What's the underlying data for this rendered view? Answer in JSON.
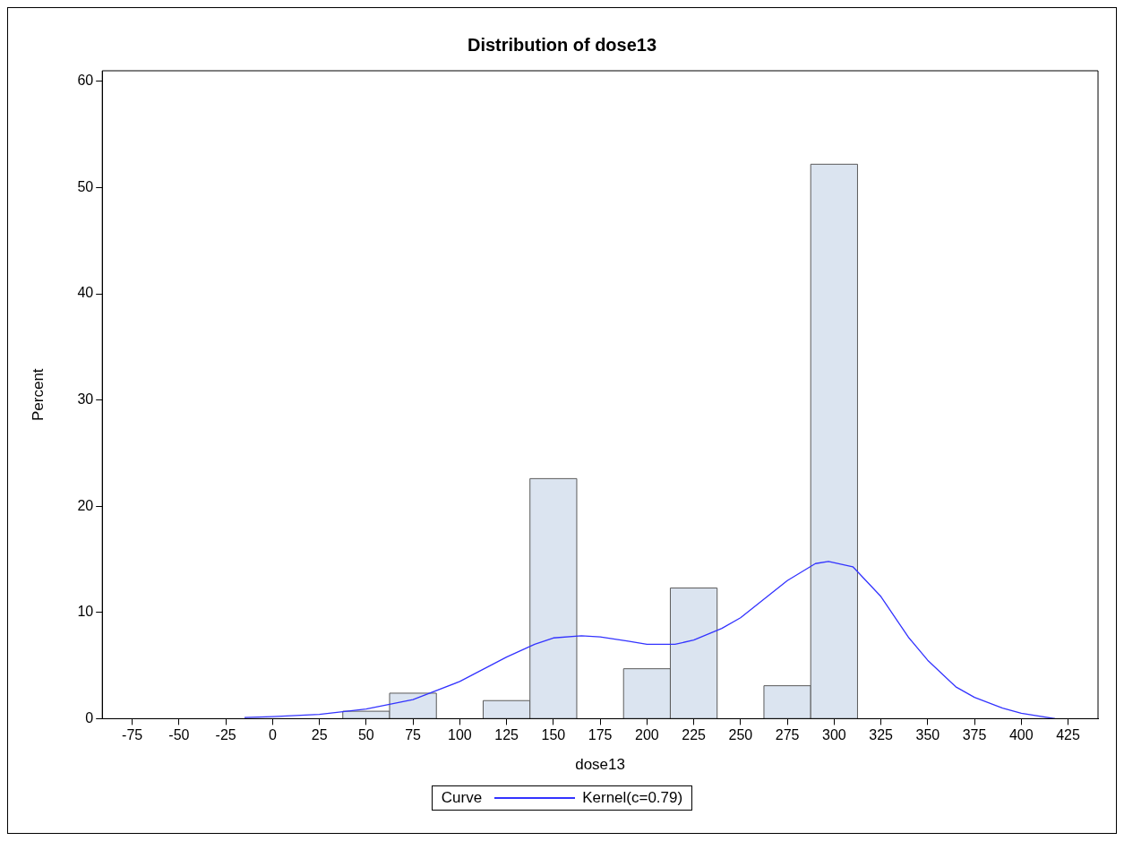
{
  "chart_data": {
    "type": "histogram",
    "title": "Distribution of dose13",
    "xlabel": "dose13",
    "ylabel": "Percent",
    "bins": [
      37.5,
      62.5,
      87.5,
      112.5,
      137.5,
      162.5,
      187.5,
      212.5,
      237.5,
      262.5,
      287.5,
      312.5
    ],
    "values": [
      0.7,
      2.4,
      0,
      1.7,
      22.6,
      0,
      4.7,
      12.3,
      0,
      3.1,
      52.2
    ],
    "color": "#dbe4f0",
    "series": [
      {
        "name": "Kernel(c=0.79)",
        "type": "line",
        "color": "#3333ff",
        "x": [
          -15,
          0,
          25,
          50,
          75,
          100,
          125,
          140,
          150,
          165,
          175,
          190,
          200,
          215,
          225,
          240,
          250,
          275,
          290,
          297,
          310,
          325,
          340,
          350,
          365,
          375,
          390,
          400,
          418
        ],
        "values": [
          0.1,
          0.2,
          0.4,
          0.9,
          1.8,
          3.5,
          5.8,
          7.0,
          7.6,
          7.8,
          7.7,
          7.3,
          7.0,
          7.0,
          7.4,
          8.5,
          9.5,
          13.0,
          14.6,
          14.8,
          14.3,
          11.5,
          7.6,
          5.5,
          3.0,
          2.0,
          1.0,
          0.5,
          0.0
        ]
      }
    ],
    "legend_title": "Curve",
    "legend": "bottom",
    "grid": false,
    "marker": "none",
    "line_style": "solid",
    "xlim": [
      -91,
      441
    ],
    "xticks": [
      -75,
      -50,
      -25,
      0,
      25,
      50,
      75,
      100,
      125,
      150,
      175,
      200,
      225,
      250,
      275,
      300,
      325,
      350,
      375,
      400,
      425
    ],
    "ylim": [
      0,
      61
    ],
    "yticks": [
      0,
      10,
      20,
      30,
      40,
      50,
      60
    ]
  }
}
